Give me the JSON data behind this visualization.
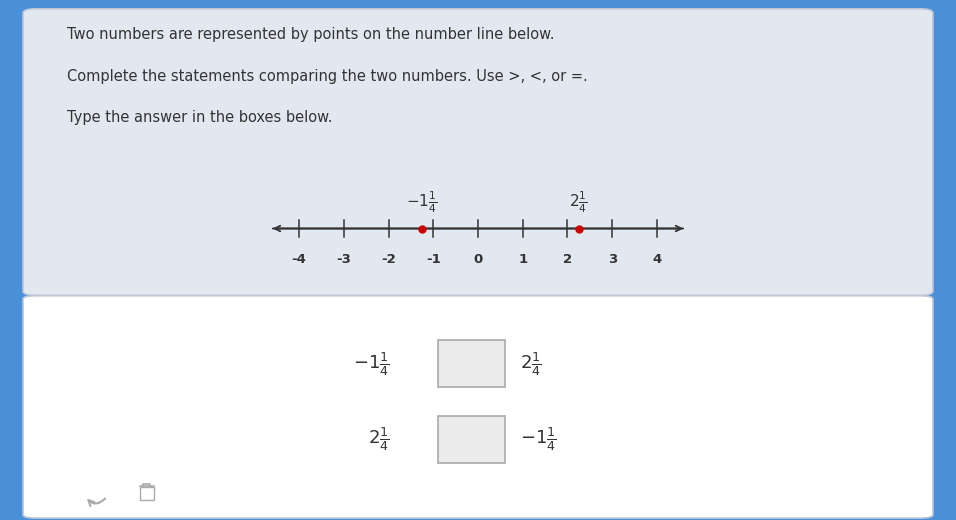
{
  "bg_blue": "#4a90d9",
  "bg_top_panel": "#e2e8f0",
  "bg_bottom_panel": "#ffffff",
  "title_text_line1": "Two numbers are represented by points on the number line below.",
  "title_text_line2": "Complete the statements comparing the two numbers. Use >, <, or =.",
  "title_text_line3": "Type the answer in the boxes below.",
  "tick_positions": [
    -4,
    -3,
    -2,
    -1,
    0,
    1,
    2,
    3,
    4
  ],
  "tick_labels": [
    "-4",
    "-3",
    "-2",
    "-1",
    "0",
    "1",
    "2",
    "3",
    "4"
  ],
  "point1": -1.25,
  "point2": 2.25,
  "point_color": "#cc0000",
  "text_color": "#333333",
  "line_color": "#333333",
  "box_fill": "#ebebeb",
  "box_edge": "#aaaaaa"
}
